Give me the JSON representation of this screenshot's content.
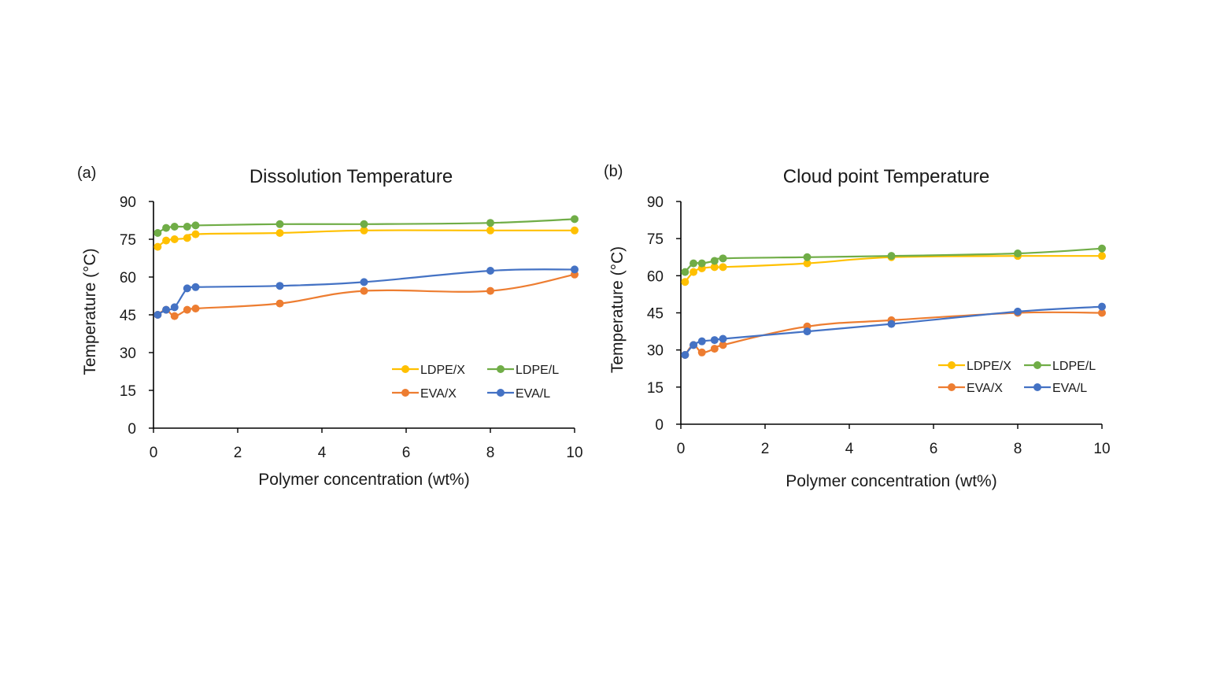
{
  "chart_data": [
    {
      "type": "line",
      "panel_label": "(a)",
      "title": "Dissolution Temperature",
      "xlabel": "Polymer concentration (wt%)",
      "ylabel": "Temperature (°C)",
      "xlim": [
        0,
        10
      ],
      "ylim": [
        0,
        90
      ],
      "xticks": [
        0,
        2,
        4,
        6,
        8,
        10
      ],
      "yticks": [
        0,
        15,
        30,
        45,
        60,
        75,
        90
      ],
      "grid": false,
      "legend_position": "bottom-right",
      "x": [
        0.1,
        0.3,
        0.5,
        0.8,
        1,
        3,
        5,
        8,
        10
      ],
      "series": [
        {
          "name": "LDPE/X",
          "color": "#FFC000",
          "values": [
            72,
            74.5,
            75,
            75.5,
            77,
            77.5,
            78.5,
            78.5,
            78.5
          ]
        },
        {
          "name": "LDPE/L",
          "color": "#70AD47",
          "values": [
            77.5,
            79.5,
            80,
            80,
            80.5,
            81,
            81,
            81.5,
            83
          ]
        },
        {
          "name": "EVA/X",
          "color": "#ED7D31",
          "values": [
            45,
            47,
            44.5,
            47,
            47.5,
            49.5,
            54.5,
            54.5,
            61
          ]
        },
        {
          "name": "EVA/L",
          "color": "#4472C4",
          "values": [
            45,
            47,
            48,
            55.5,
            56,
            56.5,
            58,
            62.5,
            63
          ]
        }
      ]
    },
    {
      "type": "line",
      "panel_label": "(b)",
      "title": "Cloud point Temperature",
      "xlabel": "Polymer concentration (wt%)",
      "ylabel": "Temperature (°C)",
      "xlim": [
        0,
        10
      ],
      "ylim": [
        0,
        90
      ],
      "xticks": [
        0,
        2,
        4,
        6,
        8,
        10
      ],
      "yticks": [
        0,
        15,
        30,
        45,
        60,
        75,
        90
      ],
      "grid": false,
      "legend_position": "bottom-right",
      "x": [
        0.1,
        0.3,
        0.5,
        0.8,
        1,
        3,
        5,
        8,
        10
      ],
      "series": [
        {
          "name": "LDPE/X",
          "color": "#FFC000",
          "values": [
            57.5,
            61.5,
            63,
            63.5,
            63.5,
            65,
            67.5,
            68,
            68
          ]
        },
        {
          "name": "LDPE/L",
          "color": "#70AD47",
          "values": [
            61.5,
            65,
            65,
            66,
            67,
            67.5,
            68,
            69,
            71
          ]
        },
        {
          "name": "EVA/X",
          "color": "#ED7D31",
          "values": [
            28,
            32,
            29,
            30.5,
            32,
            39.5,
            42,
            45,
            45
          ]
        },
        {
          "name": "EVA/L",
          "color": "#4472C4",
          "values": [
            28,
            32,
            33.5,
            34,
            34.5,
            37.5,
            40.5,
            45.5,
            47.5
          ]
        }
      ]
    }
  ]
}
